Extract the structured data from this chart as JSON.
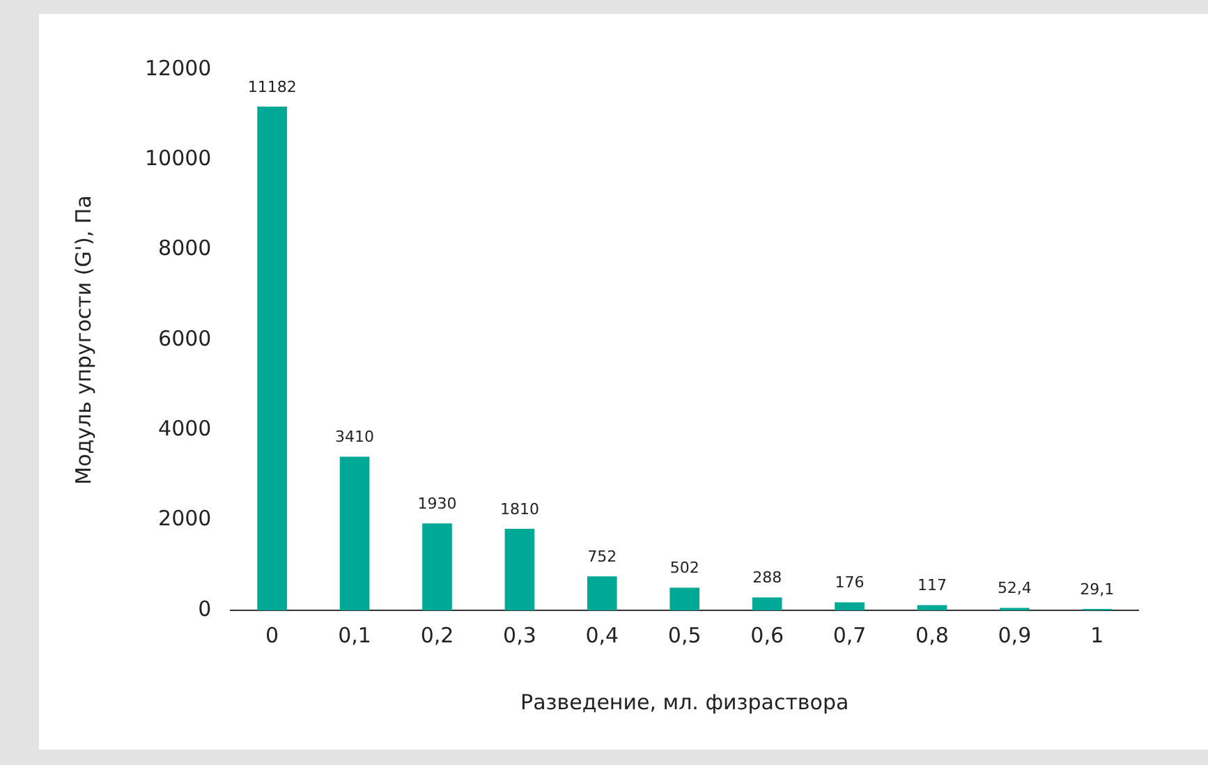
{
  "chart_data": {
    "type": "bar",
    "xlabel": "Разведение, мл. физраствора",
    "ylabel": "Модуль упругости (G'), Па",
    "categories": [
      "0",
      "0,1",
      "0,2",
      "0,3",
      "0,4",
      "0,5",
      "0,6",
      "0,7",
      "0,8",
      "0,9",
      "1"
    ],
    "values": [
      11182,
      3410,
      1930,
      1810,
      752,
      502,
      288,
      176,
      117,
      52.4,
      29.1
    ],
    "value_labels": [
      "11182",
      "3410",
      "1930",
      "1810",
      "752",
      "502",
      "288",
      "176",
      "117",
      "52,4",
      "29,1"
    ],
    "color": "#00a896",
    "ylim": [
      0,
      12000
    ],
    "yticks": [
      0,
      2000,
      4000,
      6000,
      8000,
      10000,
      12000
    ],
    "grid": false,
    "legend": false
  }
}
